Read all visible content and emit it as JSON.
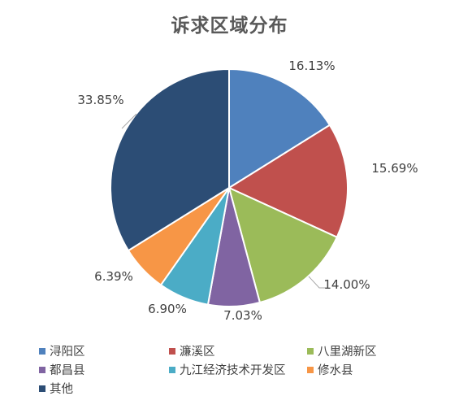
{
  "chart_data": {
    "type": "pie",
    "title": "诉求区域分布",
    "categories": [
      "浔阳区",
      "濂溪区",
      "八里湖新区",
      "都昌县",
      "九江经济技术开发区",
      "修水县",
      "其他"
    ],
    "values": [
      16.13,
      15.69,
      14.0,
      7.03,
      6.9,
      6.39,
      33.85
    ],
    "labels": [
      "16.13%",
      "15.69%",
      "14.00%",
      "7.03%",
      "6.90%",
      "6.39%",
      "33.85%"
    ],
    "colors": [
      "#4F81BD",
      "#C0504D",
      "#9BBB59",
      "#8064A2",
      "#4BACC6",
      "#F79646",
      "#2C4D75"
    ],
    "legend_position": "bottom",
    "start": "top, clockwise"
  }
}
